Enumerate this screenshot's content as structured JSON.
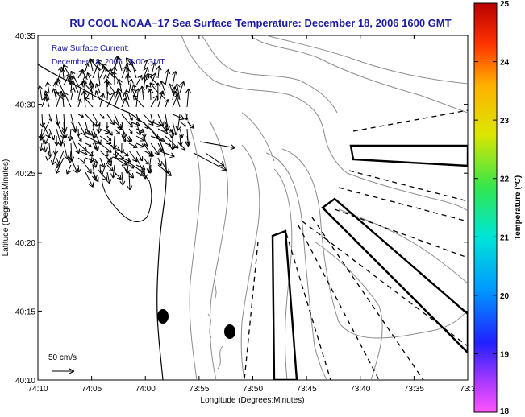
{
  "title": "RU COOL  NOAA−17  Sea Surface Temperature:  December 18, 2006 1600 GMT",
  "annotation_line1": "Raw Surface Current:",
  "annotation_line2": "December 18, 2006 15:00 GMT",
  "scale_label": "50 cm/s",
  "x_axis_label": "Longitude (Degrees:Minutes)",
  "y_axis_label": "Latitude (Degrees:Minutes)",
  "x_ticks": [
    "74:10",
    "74:05",
    "74:00",
    "73:55",
    "73:50",
    "73:45",
    "73:40",
    "73:35",
    "73:3"
  ],
  "y_ticks": [
    "40:35",
    "40:30",
    "40:25",
    "40:20",
    "40:15",
    "40:10"
  ],
  "colorbar": {
    "label": "Temperature (°C)",
    "ticks": [
      "25",
      "24",
      "23",
      "22",
      "21",
      "20",
      "19",
      "18"
    ],
    "range": [
      18,
      25
    ]
  },
  "map_type": "sea surface temperature contour map with current vectors",
  "colors": {
    "title": "#1a1aa0",
    "annotation": "#1a1aa0",
    "contour": "#8c8c8c",
    "coast": "#000000"
  }
}
